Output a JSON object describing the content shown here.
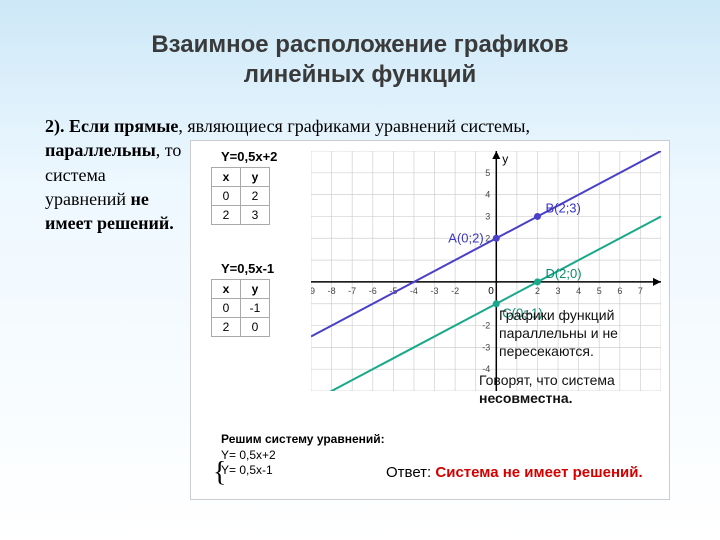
{
  "title": {
    "line1": "Взаимное расположение графиков",
    "line2": "линейных функций"
  },
  "text": {
    "prefix": "2). Если прямые",
    "mid": ", являющиеся графиками уравнений системы,",
    "bold1": "параллельны",
    "mid2": ", то система уравнений",
    "bold2": "не имеет решений."
  },
  "equations": {
    "eq1": "Y=0,5x+2",
    "eq2": "Y=0,5x-1"
  },
  "table1": {
    "hx": "x",
    "hy": "y",
    "rows": [
      [
        "0",
        "2"
      ],
      [
        "2",
        "3"
      ]
    ]
  },
  "table2": {
    "hx": "x",
    "hy": "y",
    "rows": [
      [
        "0",
        "-1"
      ],
      [
        "2",
        "0"
      ]
    ]
  },
  "graph": {
    "xlim": [
      -9,
      8
    ],
    "ylim": [
      -5,
      6
    ],
    "xticks": [
      -9,
      -8,
      -7,
      -6,
      -5,
      -4,
      -3,
      -2,
      2,
      3,
      4,
      5,
      6,
      7
    ],
    "yticks": [
      -4,
      -3,
      -2,
      2,
      3,
      4,
      5
    ],
    "grid_color": "#d0d0d0",
    "axis_color": "#000000",
    "line1": {
      "color": "#4a3fc9",
      "pts": [
        [
          -9,
          -2.5
        ],
        [
          8,
          6
        ]
      ],
      "width": 2
    },
    "line2": {
      "color": "#1aa88a",
      "pts": [
        [
          -9,
          -5.5
        ],
        [
          8,
          3
        ]
      ],
      "width": 2
    },
    "points": {
      "A": {
        "x": 0,
        "y": 2,
        "color": "#4a3fc9",
        "label": "A(0;2)"
      },
      "B": {
        "x": 2,
        "y": 3,
        "color": "#4a3fc9",
        "label": "B(2;3)"
      },
      "C": {
        "x": 0,
        "y": -1,
        "color": "#1aa88a",
        "label": "C(0;-1)"
      },
      "D": {
        "x": 2,
        "y": 0,
        "color": "#1aa88a",
        "label": "D(2;0)"
      }
    },
    "ylabel": "y",
    "origin_label": "0"
  },
  "note": {
    "l1": "Графики функций",
    "l2": "параллельны и не",
    "l3": "пересекаются.",
    "l4": "Говорят, что система",
    "l5": "несовместна."
  },
  "solve": {
    "title": "Решим систему уравнений:",
    "e1": "Y= 0,5x+2",
    "e2": "Y= 0,5x-1"
  },
  "answer": {
    "label": "Ответ:",
    "text": "Система не имеет решений."
  }
}
